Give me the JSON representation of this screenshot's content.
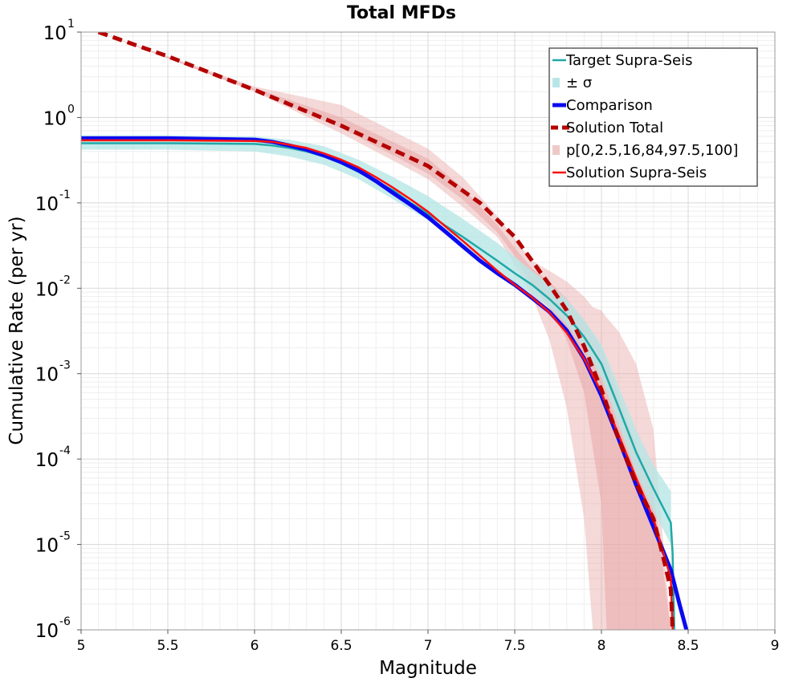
{
  "colors": {
    "target": "#20a8a8",
    "target_band": "#b8e6e6",
    "comparison": "#0a0af0",
    "solution_total": "#b40000",
    "percentile_band": "#e8a8a8",
    "solution_supra": "#ff1010",
    "grid_major": "#d8d8d8",
    "grid_minor": "#eeeeee"
  },
  "chart_data": {
    "type": "line",
    "title": "Total MFDs",
    "xlabel": "Magnitude",
    "ylabel": "Cumulative Rate (per yr)",
    "xlim": [
      5,
      9
    ],
    "ylim": [
      1e-06,
      10
    ],
    "yscale": "log",
    "grid": true,
    "legend_position": "top-right",
    "x_ticks": [
      "5",
      "5.5",
      "6",
      "6.5",
      "7",
      "7.5",
      "8",
      "8.5",
      "9"
    ],
    "y_ticks": [
      {
        "base": "10",
        "exp": "-6"
      },
      {
        "base": "10",
        "exp": "-5"
      },
      {
        "base": "10",
        "exp": "-4"
      },
      {
        "base": "10",
        "exp": "-3"
      },
      {
        "base": "10",
        "exp": "-2"
      },
      {
        "base": "10",
        "exp": "-1"
      },
      {
        "base": "10",
        "exp": "0"
      },
      {
        "base": "10",
        "exp": "1"
      }
    ],
    "legend": [
      {
        "label": "Target Supra-Seis",
        "style": "line",
        "color": "#20a8a8"
      },
      {
        "label": "± σ",
        "style": "band",
        "color": "#b8e6e6"
      },
      {
        "label": "Comparison",
        "style": "thick",
        "color": "#0a0af0"
      },
      {
        "label": "Solution Total",
        "style": "dashed",
        "color": "#b40000"
      },
      {
        "label": "p[0,2.5,16,84,97.5,100]",
        "style": "band",
        "color": "#f0c8c8"
      },
      {
        "label": "Solution Supra-Seis",
        "style": "line",
        "color": "#ff1010"
      }
    ],
    "series": [
      {
        "name": "Target Supra-Seis",
        "x": [
          5.0,
          5.5,
          6.0,
          6.1,
          6.2,
          6.3,
          6.4,
          6.5,
          6.6,
          6.7,
          6.8,
          6.9,
          7.0,
          7.1,
          7.2,
          7.3,
          7.4,
          7.5,
          7.6,
          7.7,
          7.8,
          7.9,
          8.0,
          8.1,
          8.2,
          8.3,
          8.4,
          8.41,
          8.42
        ],
        "y": [
          0.5,
          0.5,
          0.49,
          0.47,
          0.44,
          0.4,
          0.35,
          0.29,
          0.23,
          0.18,
          0.14,
          0.1,
          0.075,
          0.054,
          0.04,
          0.029,
          0.021,
          0.015,
          0.011,
          0.0075,
          0.0048,
          0.0027,
          0.0013,
          0.0004,
          0.00012,
          4.5e-05,
          1.8e-05,
          8e-06,
          1e-06
        ]
      },
      {
        "name": "± σ",
        "x": [
          5.0,
          5.5,
          6.0,
          6.2,
          6.4,
          6.6,
          6.8,
          7.0,
          7.2,
          7.4,
          7.6,
          7.7,
          7.8,
          7.9,
          8.0,
          8.1,
          8.2,
          8.3,
          8.4
        ],
        "upper": [
          0.62,
          0.62,
          0.6,
          0.55,
          0.46,
          0.32,
          0.2,
          0.12,
          0.065,
          0.034,
          0.016,
          0.011,
          0.0074,
          0.0043,
          0.0022,
          0.0007,
          0.00022,
          8.5e-05,
          4.2e-05
        ],
        "lower": [
          0.42,
          0.42,
          0.4,
          0.35,
          0.28,
          0.19,
          0.11,
          0.063,
          0.032,
          0.016,
          0.0085,
          0.006,
          0.0038,
          0.002,
          0.0009,
          0.00025,
          7e-05,
          2.5e-05,
          1e-05
        ]
      },
      {
        "name": "Comparison",
        "x": [
          5.0,
          5.5,
          6.0,
          6.1,
          6.2,
          6.3,
          6.4,
          6.5,
          6.6,
          6.7,
          6.8,
          6.9,
          7.0,
          7.1,
          7.2,
          7.3,
          7.4,
          7.5,
          7.6,
          7.7,
          7.8,
          7.9,
          8.0,
          8.1,
          8.2,
          8.3,
          8.4,
          8.45,
          8.49
        ],
        "y": [
          0.57,
          0.57,
          0.55,
          0.52,
          0.47,
          0.42,
          0.36,
          0.3,
          0.24,
          0.18,
          0.13,
          0.095,
          0.068,
          0.046,
          0.031,
          0.021,
          0.015,
          0.011,
          0.0077,
          0.0053,
          0.0032,
          0.0015,
          0.00055,
          0.00017,
          5e-05,
          1.6e-05,
          5e-06,
          2e-06,
          1e-06
        ]
      },
      {
        "name": "Solution Total",
        "x": [
          5.1,
          5.5,
          6.0,
          6.5,
          7.0,
          7.3,
          7.5,
          7.6,
          7.7,
          7.8,
          7.9,
          8.0,
          8.1,
          8.2,
          8.3,
          8.35,
          8.4,
          8.41
        ],
        "y": [
          10,
          5.2,
          2.1,
          0.8,
          0.27,
          0.1,
          0.04,
          0.021,
          0.011,
          0.0055,
          0.0021,
          0.00065,
          0.00017,
          5.2e-05,
          2e-05,
          8e-06,
          3e-06,
          1e-06
        ]
      },
      {
        "name": "p[0,2.5,16,84,97.5,100] (min–max)",
        "x": [
          5.1,
          6.0,
          6.5,
          7.0,
          7.2,
          7.4,
          7.5,
          7.6,
          7.7,
          7.8,
          7.9,
          7.95,
          8.0,
          8.02,
          8.1,
          8.2,
          8.3,
          8.4
        ],
        "upper": [
          10,
          2.3,
          1.4,
          0.43,
          0.2,
          0.07,
          0.038,
          0.021,
          0.016,
          0.012,
          0.008,
          0.006,
          0.0055,
          0.0048,
          0.0031,
          0.0013,
          0.00022,
          1e-06
        ],
        "lower": [
          10,
          2.0,
          0.65,
          0.19,
          0.09,
          0.04,
          0.019,
          0.008,
          0.0025,
          0.0004,
          2e-05,
          1e-06,
          1e-06,
          1e-06,
          1e-06,
          1e-06,
          1e-06,
          1e-06
        ]
      },
      {
        "name": "p[0,2.5,16,84,97.5,100] (16–84)",
        "x": [
          5.1,
          6.0,
          6.5,
          7.0,
          7.2,
          7.4,
          7.5,
          7.6,
          7.7,
          7.8,
          7.9,
          8.0,
          8.03,
          8.1,
          8.2,
          8.3,
          8.4
        ],
        "upper": [
          10,
          2.2,
          1.0,
          0.33,
          0.15,
          0.055,
          0.03,
          0.017,
          0.012,
          0.0075,
          0.0042,
          0.002,
          0.0014,
          0.00055,
          0.00014,
          4e-05,
          1e-06
        ],
        "lower": [
          10,
          2.05,
          0.75,
          0.22,
          0.11,
          0.045,
          0.024,
          0.011,
          0.006,
          0.0025,
          0.0006,
          3e-05,
          1e-06,
          1e-06,
          1e-06,
          1e-06,
          1e-06
        ]
      },
      {
        "name": "Solution Supra-Seis",
        "x": [
          5.0,
          5.5,
          6.0,
          6.1,
          6.2,
          6.3,
          6.4,
          6.5,
          6.6,
          6.7,
          6.8,
          6.9,
          7.0,
          7.1,
          7.2,
          7.3,
          7.4,
          7.5,
          7.6,
          7.7,
          7.8,
          7.9,
          8.0,
          8.1,
          8.2,
          8.3,
          8.4,
          8.41
        ],
        "y": [
          0.54,
          0.54,
          0.53,
          0.52,
          0.48,
          0.44,
          0.38,
          0.32,
          0.26,
          0.2,
          0.15,
          0.11,
          0.079,
          0.053,
          0.036,
          0.024,
          0.016,
          0.011,
          0.0078,
          0.0052,
          0.003,
          0.0015,
          0.0006,
          0.00019,
          6e-05,
          2e-05,
          4e-06,
          1e-06
        ]
      }
    ]
  }
}
